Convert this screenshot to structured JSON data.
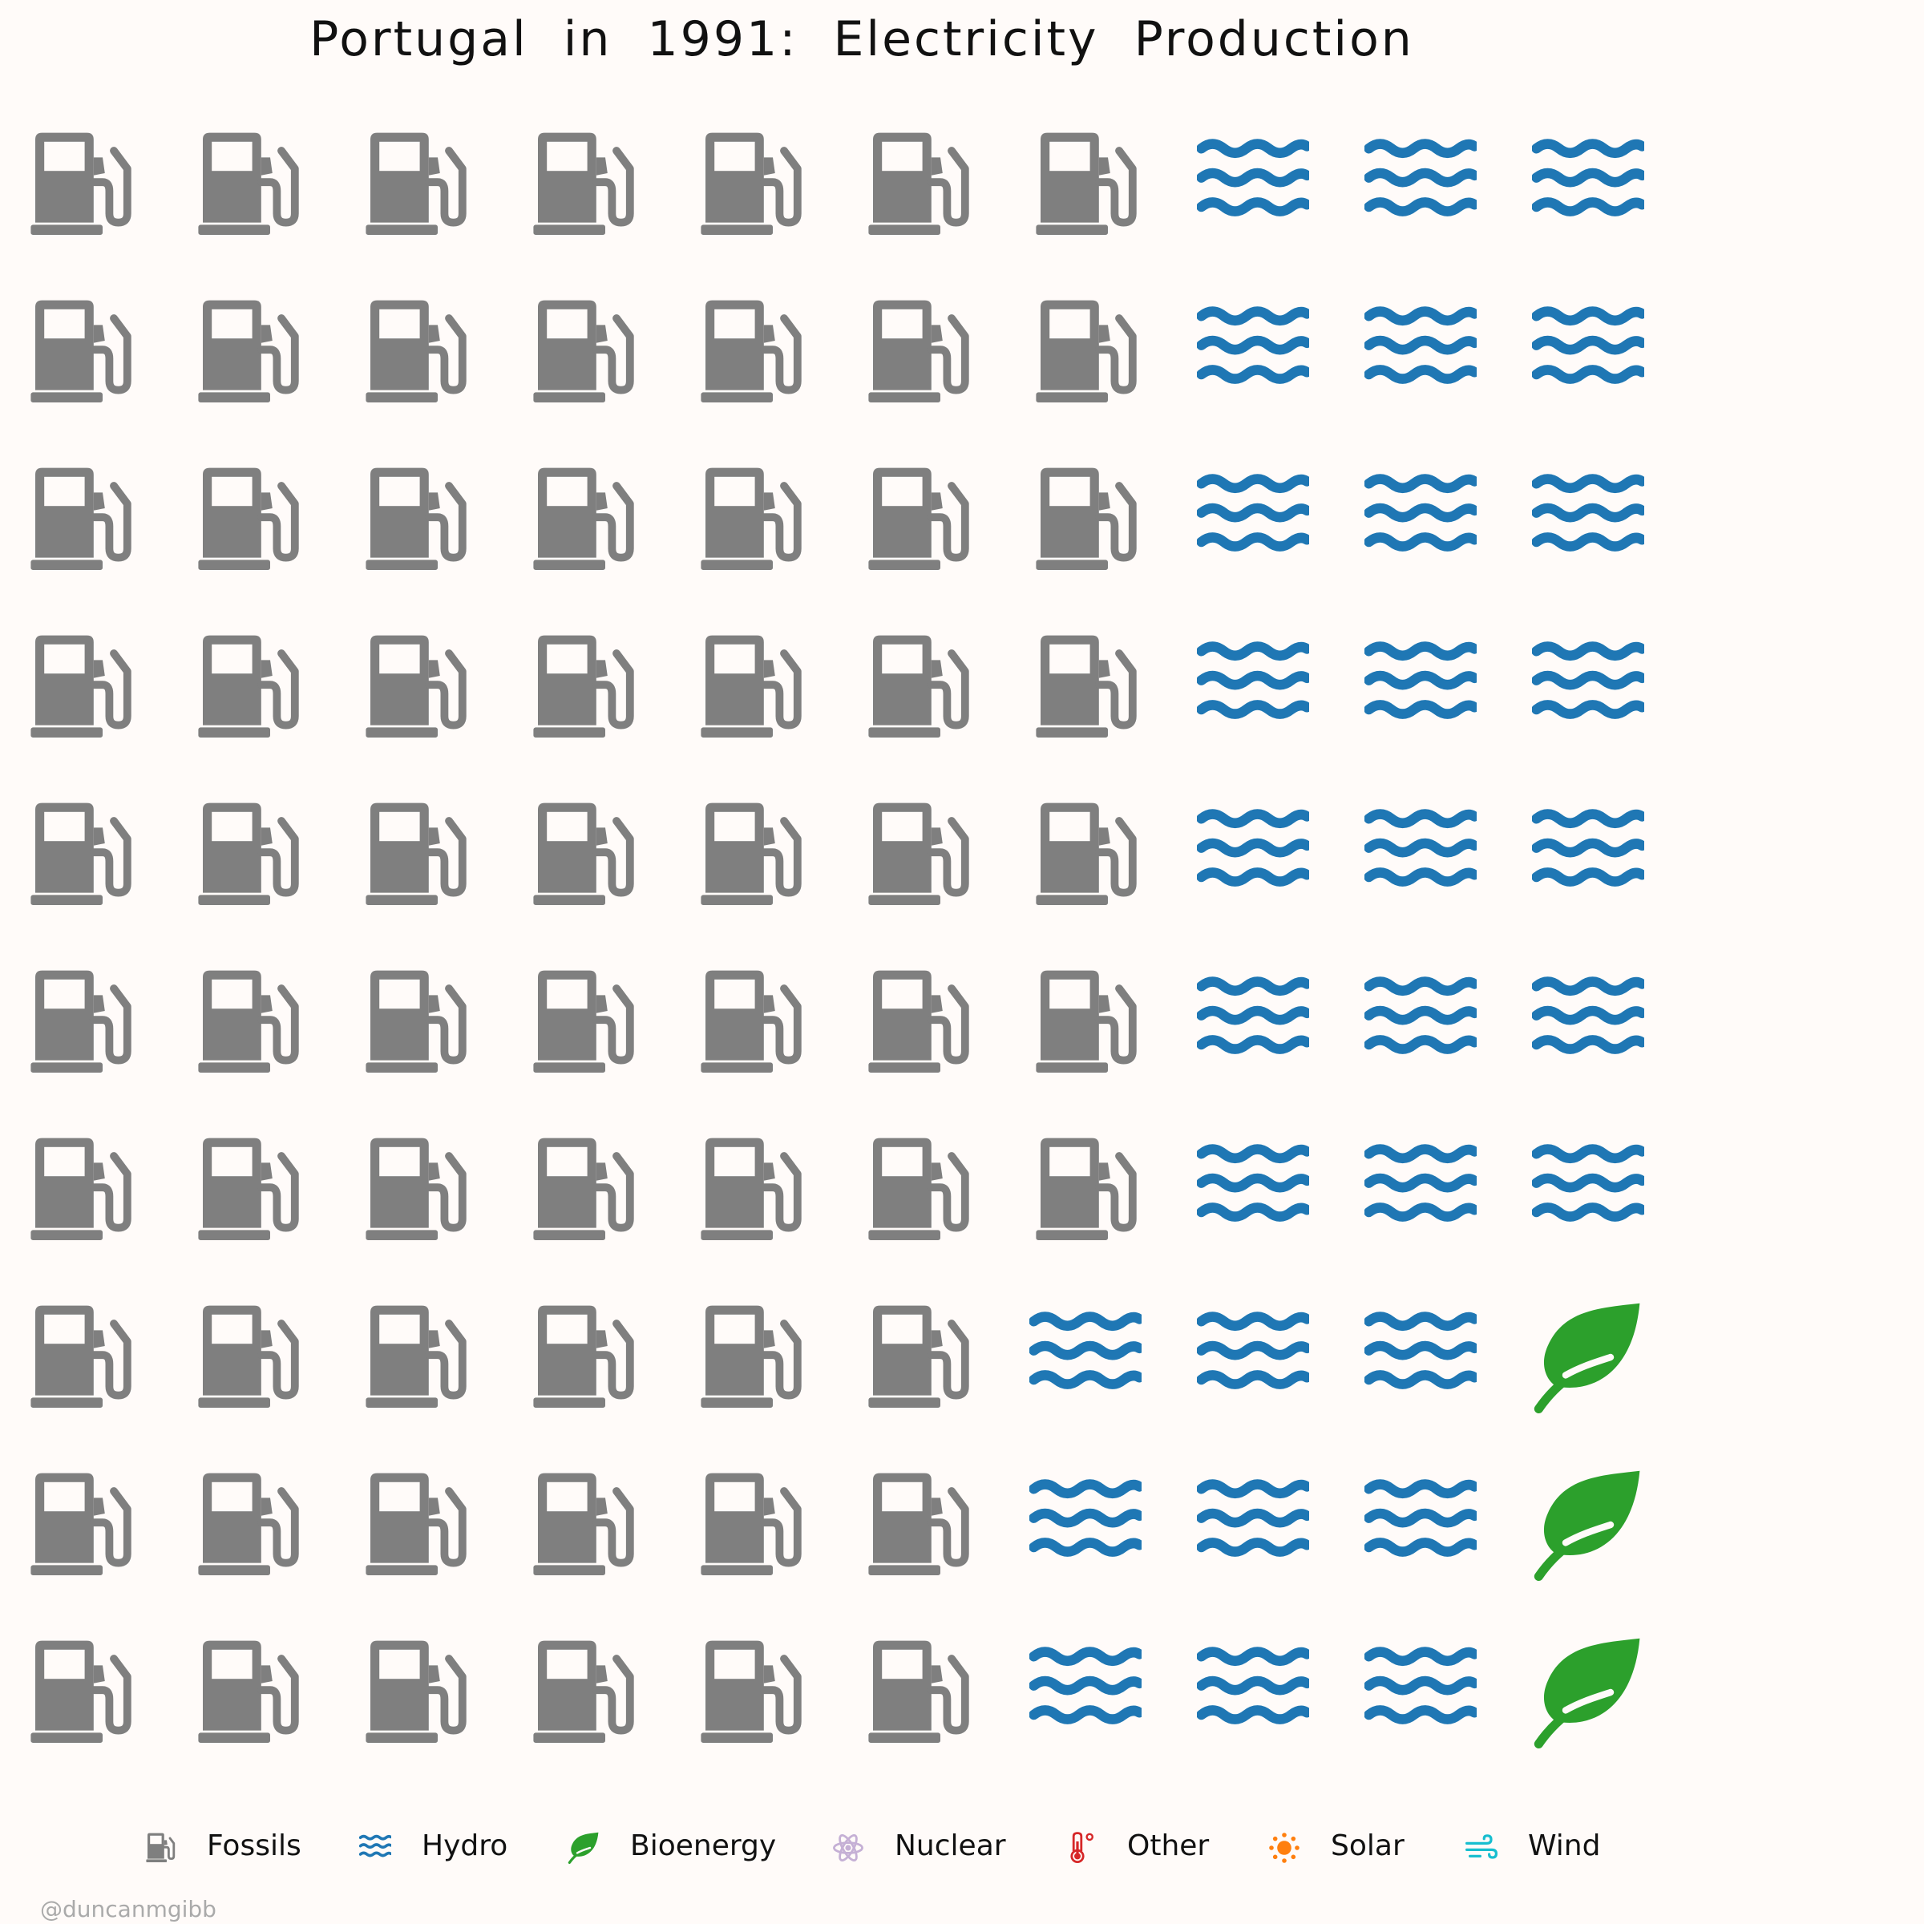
{
  "title": "Portugal in 1991: Electricity Production",
  "credit": "@duncanmgibb",
  "chart_data": {
    "type": "waffle",
    "title": "Portugal in 1991: Electricity Production",
    "rows": 10,
    "columns": 10,
    "fill_order": "column-major, left to right, top to bottom",
    "categories": [
      "Fossils",
      "Hydro",
      "Bioenergy",
      "Nuclear",
      "Other",
      "Solar",
      "Wind"
    ],
    "values": [
      67,
      30,
      3,
      0,
      0,
      0,
      0
    ],
    "unit": "icons (percent of production)",
    "colors": {
      "Fossils": "#7f7f7f",
      "Hydro": "#1f77b4",
      "Bioenergy": "#2ca02c",
      "Nuclear": "#c5b0d5",
      "Other": "#d62728",
      "Solar": "#ff7f0e",
      "Wind": "#17becf"
    },
    "icons": {
      "Fossils": "gas-pump-icon",
      "Hydro": "water-icon",
      "Bioenergy": "leaf-icon",
      "Nuclear": "atom-icon",
      "Other": "thermometer-icon",
      "Solar": "sun-icon",
      "Wind": "wind-icon"
    },
    "legend_position": "bottom",
    "grid": false
  },
  "legend": [
    {
      "label": "Fossils",
      "icon": "gas-pump-icon",
      "color": "#7f7f7f"
    },
    {
      "label": "Hydro",
      "icon": "water-icon",
      "color": "#1f77b4"
    },
    {
      "label": "Bioenergy",
      "icon": "leaf-icon",
      "color": "#2ca02c"
    },
    {
      "label": "Nuclear",
      "icon": "atom-icon",
      "color": "#c5b0d5"
    },
    {
      "label": "Other",
      "icon": "thermometer-icon",
      "color": "#d62728"
    },
    {
      "label": "Solar",
      "icon": "sun-icon",
      "color": "#ff7f0e"
    },
    {
      "label": "Wind",
      "icon": "wind-icon",
      "color": "#17becf"
    }
  ]
}
